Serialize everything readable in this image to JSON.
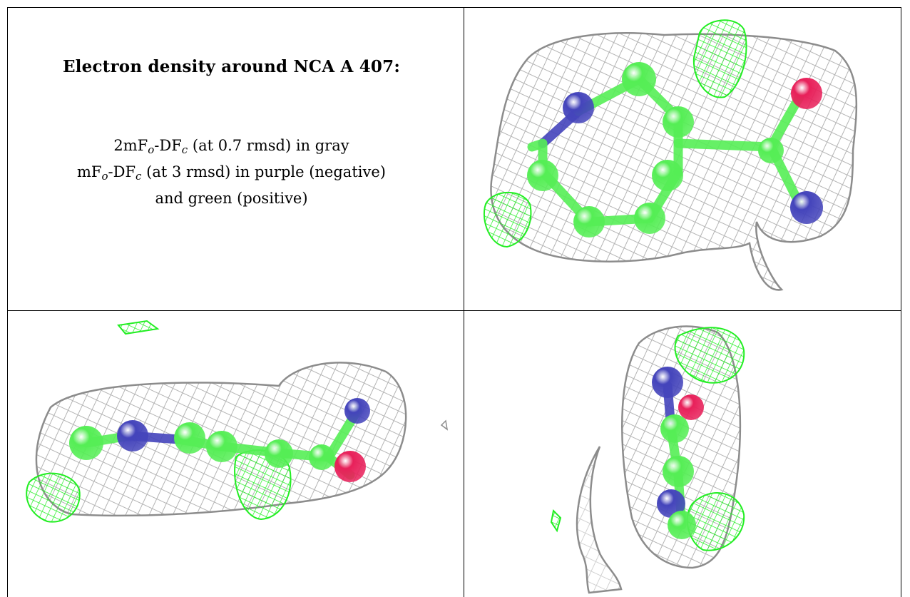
{
  "caption": {
    "title": "Electron density around NCA A 407:",
    "line1": {
      "pre": "2mF",
      "sub1": "o",
      "mid": "-DF",
      "sub2": "c",
      "post": " (at 0.7 rmsd) in gray"
    },
    "line2": {
      "pre": "mF",
      "sub1": "o",
      "mid": "-DF",
      "sub2": "c",
      "post": " (at 3 rmsd) in purple (negative)"
    },
    "line3": "and green (positive)"
  },
  "colors": {
    "mesh_gray": "#b4b4b4",
    "mesh_dark": "#8c8c8c",
    "mesh_green": "#22ee22",
    "carbon": "#55ee55",
    "nitrogen": "#4444bb",
    "oxygen": "#e8205a"
  },
  "panels": [
    {
      "name": "top-right-view",
      "icon": "molecule-density-view-icon"
    },
    {
      "name": "bottom-left-view",
      "icon": "molecule-density-side-view-icon"
    },
    {
      "name": "bottom-right-view",
      "icon": "molecule-density-end-view-icon"
    }
  ]
}
